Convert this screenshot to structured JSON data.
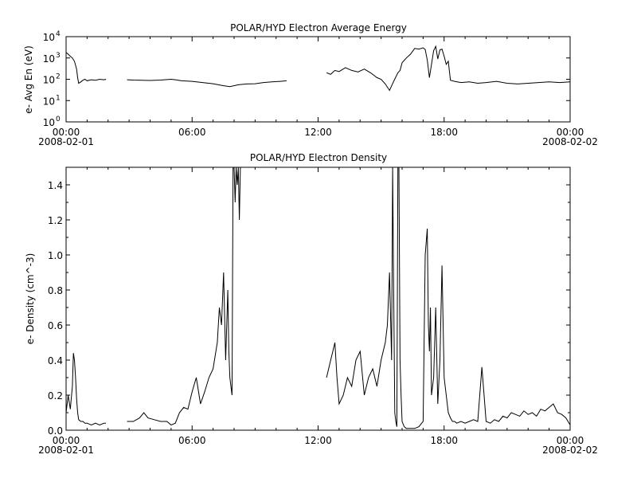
{
  "chart_data": [
    {
      "type": "line",
      "title": "POLAR/HYD  Electron Average Energy",
      "ylabel": "e- Avg En (eV)",
      "xlabel": "",
      "y_scale": "log",
      "ylim": [
        1,
        10000
      ],
      "y_ticks": [
        {
          "value": 1,
          "base": "10",
          "exp": "0"
        },
        {
          "value": 10,
          "base": "10",
          "exp": "1"
        },
        {
          "value": 100,
          "base": "10",
          "exp": "2"
        },
        {
          "value": 1000,
          "base": "10",
          "exp": "3"
        },
        {
          "value": 10000,
          "base": "10",
          "exp": "4"
        }
      ],
      "xlim_hours": [
        0,
        24
      ],
      "x_ticks": [
        {
          "hour": 0,
          "label": "00:00",
          "date": "2008-02-01"
        },
        {
          "hour": 6,
          "label": "06:00",
          "date": ""
        },
        {
          "hour": 12,
          "label": "12:00",
          "date": ""
        },
        {
          "hour": 18,
          "label": "18:00",
          "date": ""
        },
        {
          "hour": 24,
          "label": "00:00",
          "date": "2008-02-02"
        }
      ],
      "grid": false,
      "series": [
        {
          "segments": [
            {
              "x": [
                0.0,
                0.1,
                0.2,
                0.3,
                0.4,
                0.5,
                0.55,
                0.6,
                0.7,
                0.8,
                0.9,
                1.0,
                1.2,
                1.4,
                1.6,
                1.8,
                1.9
              ],
              "y": [
                1800,
                1500,
                1200,
                1000,
                700,
                300,
                120,
                65,
                75,
                90,
                100,
                85,
                95,
                90,
                100,
                95,
                100
              ]
            },
            {
              "x": [
                2.9,
                3.2,
                3.6,
                4.0,
                4.5,
                5.0,
                5.2,
                5.5,
                6.0,
                6.5,
                7.0,
                7.5,
                7.8,
                8.2,
                8.6,
                9.0,
                9.4,
                9.8,
                10.2,
                10.5
              ],
              "y": [
                95,
                92,
                90,
                88,
                92,
                100,
                95,
                85,
                80,
                70,
                62,
                50,
                45,
                55,
                60,
                62,
                70,
                75,
                80,
                85
              ]
            },
            {
              "x": [
                12.4,
                12.6,
                12.8,
                13.0,
                13.3,
                13.6,
                13.9,
                14.2,
                14.5,
                14.8,
                15.0,
                15.2,
                15.4,
                15.6,
                15.8,
                15.9,
                16.0,
                16.2,
                16.4,
                16.6,
                16.8,
                17.0,
                17.1,
                17.2,
                17.3,
                17.4,
                17.5,
                17.6,
                17.7,
                17.8,
                17.9,
                18.0,
                18.1,
                18.2,
                18.3,
                18.5,
                18.8,
                19.2,
                19.6,
                20.0,
                20.5,
                21.0,
                21.5,
                22.0,
                22.5,
                23.0,
                23.5,
                24.0
              ],
              "y": [
                200,
                170,
                260,
                230,
                350,
                260,
                220,
                300,
                200,
                120,
                100,
                60,
                30,
                80,
                200,
                260,
                600,
                1000,
                1500,
                2800,
                2600,
                3000,
                2500,
                800,
                120,
                500,
                2200,
                3500,
                900,
                2400,
                2600,
                1200,
                500,
                700,
                90,
                80,
                70,
                75,
                65,
                70,
                80,
                65,
                60,
                65,
                70,
                75,
                70,
                75
              ]
            }
          ]
        }
      ]
    },
    {
      "type": "line",
      "title": "POLAR/HYD  Electron Density",
      "ylabel": "e- Density (cm^-3)",
      "xlabel": "",
      "y_scale": "linear",
      "ylim": [
        0,
        1.5
      ],
      "y_ticks": [
        {
          "value": 0.0,
          "label": "0.0"
        },
        {
          "value": 0.2,
          "label": "0.2"
        },
        {
          "value": 0.4,
          "label": "0.4"
        },
        {
          "value": 0.6,
          "label": "0.6"
        },
        {
          "value": 0.8,
          "label": "0.8"
        },
        {
          "value": 1.0,
          "label": "1.0"
        },
        {
          "value": 1.2,
          "label": "1.2"
        },
        {
          "value": 1.4,
          "label": "1.4"
        }
      ],
      "xlim_hours": [
        0,
        24
      ],
      "x_ticks": [
        {
          "hour": 0,
          "label": "00:00",
          "date": "2008-02-01"
        },
        {
          "hour": 6,
          "label": "06:00",
          "date": ""
        },
        {
          "hour": 12,
          "label": "12:00",
          "date": ""
        },
        {
          "hour": 18,
          "label": "18:00",
          "date": ""
        },
        {
          "hour": 24,
          "label": "00:00",
          "date": "2008-02-02"
        }
      ],
      "grid": false,
      "series": [
        {
          "segments": [
            {
              "x": [
                0.0,
                0.1,
                0.2,
                0.3,
                0.35,
                0.4,
                0.45,
                0.5,
                0.55,
                0.6,
                0.7,
                0.8,
                0.9,
                1.0,
                1.2,
                1.4,
                1.6,
                1.8,
                1.9
              ],
              "y": [
                0.1,
                0.2,
                0.12,
                0.25,
                0.44,
                0.4,
                0.3,
                0.18,
                0.1,
                0.06,
                0.05,
                0.05,
                0.04,
                0.04,
                0.03,
                0.04,
                0.03,
                0.04,
                0.04
              ]
            },
            {
              "x": [
                2.9,
                3.2,
                3.5,
                3.7,
                3.9,
                4.2,
                4.5,
                4.8,
                5.0,
                5.2,
                5.4,
                5.6,
                5.8,
                6.0,
                6.2,
                6.4,
                6.6,
                6.8,
                7.0,
                7.2,
                7.3,
                7.4,
                7.5,
                7.6,
                7.7,
                7.75,
                7.8,
                7.85,
                7.9,
                7.95,
                8.0,
                8.05,
                8.1,
                8.15,
                8.2,
                8.25,
                8.3
              ],
              "y": [
                0.05,
                0.05,
                0.07,
                0.1,
                0.07,
                0.06,
                0.05,
                0.05,
                0.03,
                0.04,
                0.1,
                0.13,
                0.12,
                0.22,
                0.3,
                0.15,
                0.22,
                0.3,
                0.35,
                0.5,
                0.7,
                0.6,
                0.9,
                0.4,
                0.8,
                0.45,
                0.3,
                0.25,
                0.2,
                1.5,
                1.6,
                1.3,
                1.7,
                1.4,
                1.6,
                1.2,
                1.5
              ]
            },
            {
              "x": [
                12.4,
                12.5,
                12.6,
                12.7,
                12.8,
                12.9,
                13.0,
                13.2,
                13.4,
                13.6,
                13.8,
                14.0,
                14.2,
                14.4,
                14.6,
                14.8,
                15.0,
                15.2,
                15.3,
                15.4,
                15.5,
                15.55,
                15.6,
                15.65,
                15.7,
                15.75,
                15.8,
                15.85,
                15.9,
                15.95,
                16.0,
                16.1,
                16.2,
                16.4,
                16.6,
                16.8,
                17.0,
                17.1,
                17.2,
                17.25,
                17.3,
                17.35,
                17.4,
                17.5,
                17.6,
                17.7,
                17.8,
                17.9,
                18.0,
                18.1,
                18.2,
                18.3,
                18.4,
                18.5,
                18.6,
                18.8,
                19.0,
                19.2,
                19.4,
                19.6,
                19.8,
                20.0,
                20.2,
                20.4,
                20.6,
                20.8,
                21.0,
                21.2,
                21.4,
                21.6,
                21.8,
                22.0,
                22.2,
                22.4,
                22.6,
                22.8,
                23.0,
                23.2,
                23.4,
                23.6,
                23.8,
                24.0
              ],
              "y": [
                0.3,
                0.35,
                0.4,
                0.45,
                0.5,
                0.3,
                0.15,
                0.2,
                0.3,
                0.25,
                0.4,
                0.45,
                0.2,
                0.3,
                0.35,
                0.25,
                0.4,
                0.5,
                0.6,
                0.9,
                0.4,
                1.5,
                0.8,
                0.1,
                0.05,
                0.02,
                1.5,
                1.6,
                0.4,
                0.2,
                0.05,
                0.02,
                0.01,
                0.01,
                0.01,
                0.02,
                0.05,
                1.0,
                1.15,
                0.6,
                0.45,
                0.7,
                0.2,
                0.3,
                0.7,
                0.15,
                0.4,
                0.94,
                0.3,
                0.2,
                0.1,
                0.07,
                0.05,
                0.05,
                0.04,
                0.05,
                0.04,
                0.05,
                0.06,
                0.05,
                0.36,
                0.05,
                0.04,
                0.06,
                0.05,
                0.08,
                0.07,
                0.1,
                0.09,
                0.08,
                0.11,
                0.09,
                0.1,
                0.08,
                0.12,
                0.11,
                0.13,
                0.15,
                0.1,
                0.09,
                0.07,
                0.03
              ]
            }
          ]
        }
      ]
    }
  ]
}
